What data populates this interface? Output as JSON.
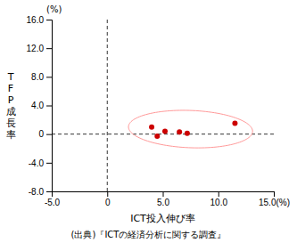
{
  "chart_data": {
    "type": "scatter",
    "x": [
      4.0,
      4.5,
      5.2,
      6.5,
      7.2,
      11.5
    ],
    "values": [
      1.0,
      -0.3,
      0.4,
      0.3,
      0.1,
      1.5
    ],
    "color": "#cc0000",
    "xlim": [
      -5.0,
      15.0
    ],
    "ylim": [
      -8.0,
      16.0
    ],
    "xticks": [
      {
        "value": -5.0,
        "label": "-5.0"
      },
      0,
      {
        "value": 5.0,
        "label": "5.0"
      },
      {
        "value": 10.0,
        "label": "10.0"
      },
      {
        "value": 15.0,
        "label": "15.0(%)"
      }
    ],
    "yticks": [
      {
        "value": -8.0,
        "label": "-8.0"
      },
      {
        "value": -4.0,
        "label": "-4.0"
      },
      0,
      {
        "value": 4.0,
        "label": "4.0"
      },
      {
        "value": 8.0,
        "label": "8.0"
      },
      {
        "value": 12.0,
        "label": "12.0"
      },
      {
        "value": 16.0,
        "label": "16.0"
      }
    ],
    "xlabel": "ICT投入伸び率",
    "ylabel": "TFP成長率",
    "y_unit": "(%)",
    "source": "(出典)『ICTの経済分析に関する調査』",
    "vlines": [
      0
    ],
    "hlines": [
      0
    ],
    "ellipse": {
      "center": [
        7.5,
        0.7
      ],
      "width": 11.2,
      "height": 5.2,
      "angle": -4,
      "color": "#ff9999"
    },
    "grid": false
  }
}
